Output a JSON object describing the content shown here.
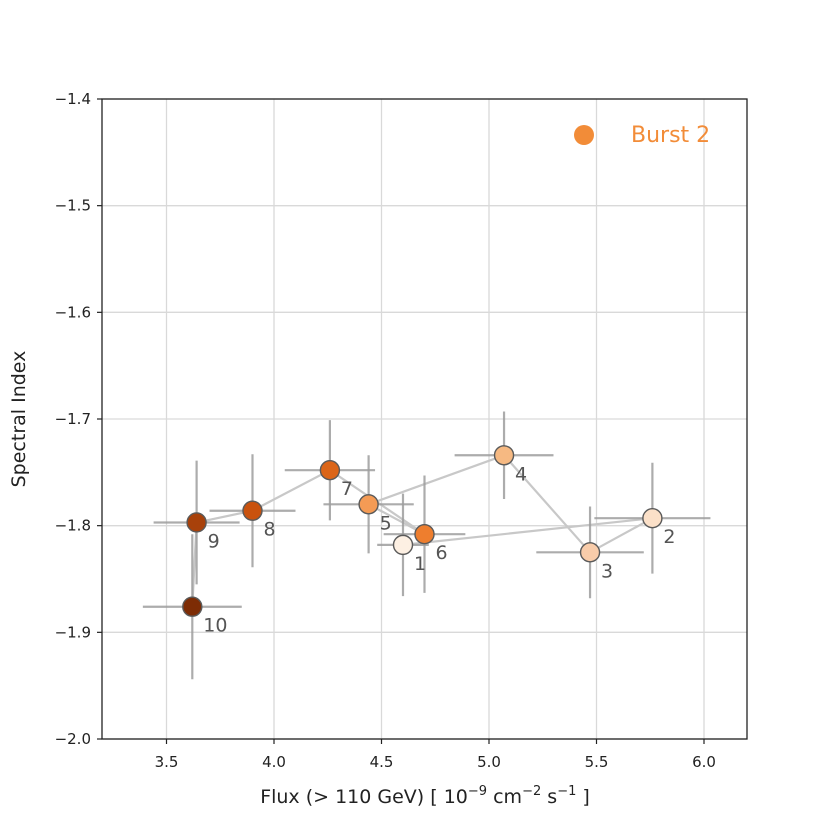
{
  "chart_data": {
    "type": "scatter",
    "xlabel": {
      "main": "Flux (> 110 GeV) [ 10",
      "exp1": "−9",
      "mid": " cm",
      "exp2": "−2",
      "mid2": " s",
      "exp3": "−1",
      "end": " ]"
    },
    "ylabel": "Spectral Index",
    "xlim": [
      3.2,
      6.2
    ],
    "ylim": [
      -2.0,
      -1.4
    ],
    "xticks": [
      3.5,
      4.0,
      4.5,
      5.0,
      5.5,
      6.0
    ],
    "xtick_labels": [
      "3.5",
      "4.0",
      "4.5",
      "5.0",
      "5.5",
      "6.0"
    ],
    "yticks": [
      -2.0,
      -1.9,
      -1.8,
      -1.7,
      -1.6,
      -1.5,
      -1.4
    ],
    "ytick_labels": [
      "−2.0",
      "−1.9",
      "−1.8",
      "−1.7",
      "−1.6",
      "−1.5",
      "−1.4"
    ],
    "grid": true,
    "legend": {
      "label": "Burst 2",
      "color": "#f28c38",
      "placement": "top-right"
    },
    "connect_in_order": true,
    "points": [
      {
        "label": "1",
        "x": 4.6,
        "y": -1.818,
        "xerr": 0.12,
        "yerr": 0.048,
        "color": "#fdf0e3"
      },
      {
        "label": "2",
        "x": 5.76,
        "y": -1.793,
        "xerr": 0.27,
        "yerr": 0.052,
        "color": "#fbe0c8"
      },
      {
        "label": "3",
        "x": 5.47,
        "y": -1.825,
        "xerr": 0.25,
        "yerr": 0.043,
        "color": "#f8ccaa"
      },
      {
        "label": "4",
        "x": 5.07,
        "y": -1.734,
        "xerr": 0.23,
        "yerr": 0.041,
        "color": "#f6b982"
      },
      {
        "label": "5",
        "x": 4.44,
        "y": -1.78,
        "xerr": 0.21,
        "yerr": 0.046,
        "color": "#f49b55"
      },
      {
        "label": "6",
        "x": 4.7,
        "y": -1.808,
        "xerr": 0.19,
        "yerr": 0.055,
        "color": "#ee7e2e"
      },
      {
        "label": "7",
        "x": 4.26,
        "y": -1.748,
        "xerr": 0.21,
        "yerr": 0.047,
        "color": "#db6518"
      },
      {
        "label": "8",
        "x": 3.9,
        "y": -1.786,
        "xerr": 0.2,
        "yerr": 0.053,
        "color": "#c9520e"
      },
      {
        "label": "9",
        "x": 3.64,
        "y": -1.797,
        "xerr": 0.2,
        "yerr": 0.058,
        "color": "#a8410a"
      },
      {
        "label": "10",
        "x": 3.62,
        "y": -1.876,
        "xerr": 0.23,
        "yerr": 0.068,
        "color": "#7d2c05"
      }
    ]
  }
}
